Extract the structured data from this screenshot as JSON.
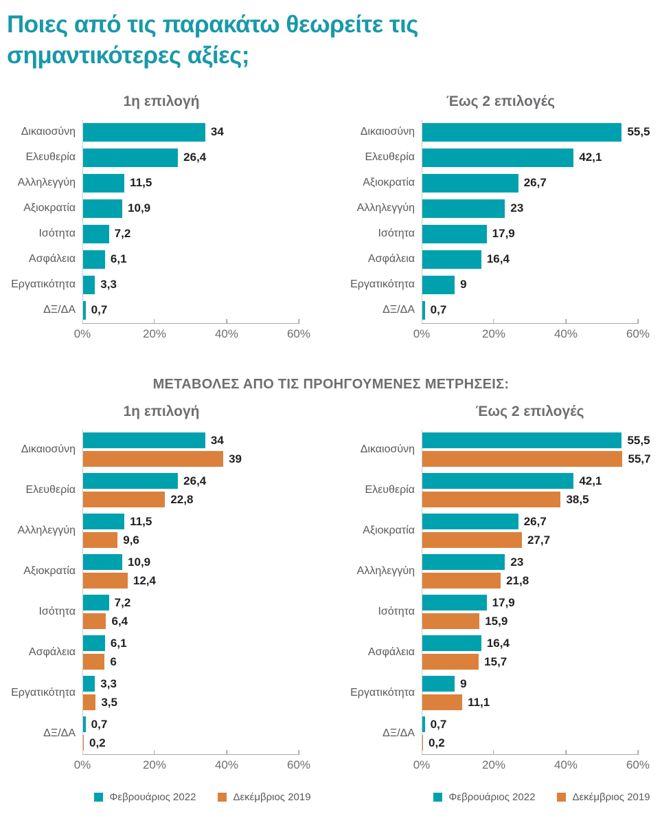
{
  "page_title": "Ποιες από τις παρακάτω θεωρείτε τις σημαντικότερες αξίες;",
  "section_heading": "ΜΕΤΑΒΟΛΕΣ ΑΠΟ ΤΙΣ ΠΡΟΗΓΟΥΜΕΝΕΣ ΜΕΤΡΗΣΕΙΣ:",
  "colors": {
    "teal": "#00A1AE",
    "orange": "#DC813B",
    "title_teal": "#1899A9"
  },
  "legend": [
    {
      "label": "Φεβρουάριος 2022",
      "color": "teal"
    },
    {
      "label": "Δεκέμβριος 2019",
      "color": "orange"
    }
  ],
  "chart_data": [
    {
      "id": "first-choice-current",
      "type": "bar",
      "orientation": "horizontal",
      "title": "1η επιλογή",
      "title_align": "chart",
      "xlim": [
        0,
        60
      ],
      "tick_labels": [
        "0%",
        "20%",
        "40%",
        "60%"
      ],
      "grid": false,
      "show_legend": false,
      "categories": [
        "Δικαιοσύνη",
        "Ελευθερία",
        "Αλληλεγγύη",
        "Αξιοκρατία",
        "Ισότητα",
        "Ασφάλεια",
        "Εργατικότητα",
        "ΔΞ/ΔΑ"
      ],
      "series": [
        {
          "name": "Φεβρουάριος 2022",
          "color": "teal",
          "values": [
            34,
            26.4,
            11.5,
            10.9,
            7.2,
            6.1,
            3.3,
            0.7
          ],
          "labels": [
            "34",
            "26,4",
            "11,5",
            "10,9",
            "7,2",
            "6,1",
            "3,3",
            "0,7"
          ]
        }
      ]
    },
    {
      "id": "two-choices-current",
      "type": "bar",
      "orientation": "horizontal",
      "title": "Έως 2 επιλογές",
      "title_align": "chart",
      "xlim": [
        0,
        60
      ],
      "tick_labels": [
        "0%",
        "20%",
        "40%",
        "60%"
      ],
      "grid": false,
      "show_legend": false,
      "categories": [
        "Δικαιοσύνη",
        "Ελευθερία",
        "Αξιοκρατία",
        "Αλληλεγγύη",
        "Ισότητα",
        "Ασφάλεια",
        "Εργατικότητα",
        "ΔΞ/ΔΑ"
      ],
      "series": [
        {
          "name": "Φεβρουάριος 2022",
          "color": "teal",
          "values": [
            55.5,
            42.1,
            26.7,
            23,
            17.9,
            16.4,
            9,
            0.7
          ],
          "labels": [
            "55,5",
            "42,1",
            "26,7",
            "23",
            "17,9",
            "16,4",
            "9",
            "0,7"
          ]
        }
      ]
    },
    {
      "id": "first-choice-comparison",
      "type": "bar",
      "orientation": "horizontal",
      "title": "1η επιλογή",
      "title_align": "chart",
      "xlim": [
        0,
        60
      ],
      "tick_labels": [
        "0%",
        "20%",
        "40%",
        "60%"
      ],
      "grid": false,
      "show_legend": true,
      "categories": [
        "Δικαιοσύνη",
        "Ελευθερία",
        "Αλληλεγγύη",
        "Αξιοκρατία",
        "Ισότητα",
        "Ασφάλεια",
        "Εργατικότητα",
        "ΔΞ/ΔΑ"
      ],
      "series": [
        {
          "name": "Φεβρουάριος 2022",
          "color": "teal",
          "values": [
            34,
            26.4,
            11.5,
            10.9,
            7.2,
            6.1,
            3.3,
            0.7
          ],
          "labels": [
            "34",
            "26,4",
            "11,5",
            "10,9",
            "7,2",
            "6,1",
            "3,3",
            "0,7"
          ]
        },
        {
          "name": "Δεκέμβριος 2019",
          "color": "orange",
          "values": [
            39,
            22.8,
            9.6,
            12.4,
            6.4,
            6,
            3.5,
            0.2
          ],
          "labels": [
            "39",
            "22,8",
            "9,6",
            "12,4",
            "6,4",
            "6",
            "3,5",
            "0,2"
          ]
        }
      ]
    },
    {
      "id": "two-choices-comparison",
      "type": "bar",
      "orientation": "horizontal",
      "title": "Έως 2 επιλογές",
      "title_align": "plot",
      "xlim": [
        0,
        60
      ],
      "tick_labels": [
        "0%",
        "20%",
        "40%",
        "60%"
      ],
      "grid": false,
      "show_legend": true,
      "categories": [
        "Δικαιοσύνη",
        "Ελευθερία",
        "Αξιοκρατία",
        "Αλληλεγγύη",
        "Ισότητα",
        "Ασφάλεια",
        "Εργατικότητα",
        "ΔΞ/ΔΑ"
      ],
      "series": [
        {
          "name": "Φεβρουάριος 2022",
          "color": "teal",
          "values": [
            55.5,
            42.1,
            26.7,
            23,
            17.9,
            16.4,
            9,
            0.7
          ],
          "labels": [
            "55,5",
            "42,1",
            "26,7",
            "23",
            "17,9",
            "16,4",
            "9",
            "0,7"
          ]
        },
        {
          "name": "Δεκέμβριος 2019",
          "color": "orange",
          "values": [
            55.7,
            38.5,
            27.7,
            21.8,
            15.9,
            15.7,
            11.1,
            0.2
          ],
          "labels": [
            "55,7",
            "38,5",
            "27,7",
            "21,8",
            "15,9",
            "15,7",
            "11,1",
            "0,2"
          ]
        }
      ]
    }
  ]
}
